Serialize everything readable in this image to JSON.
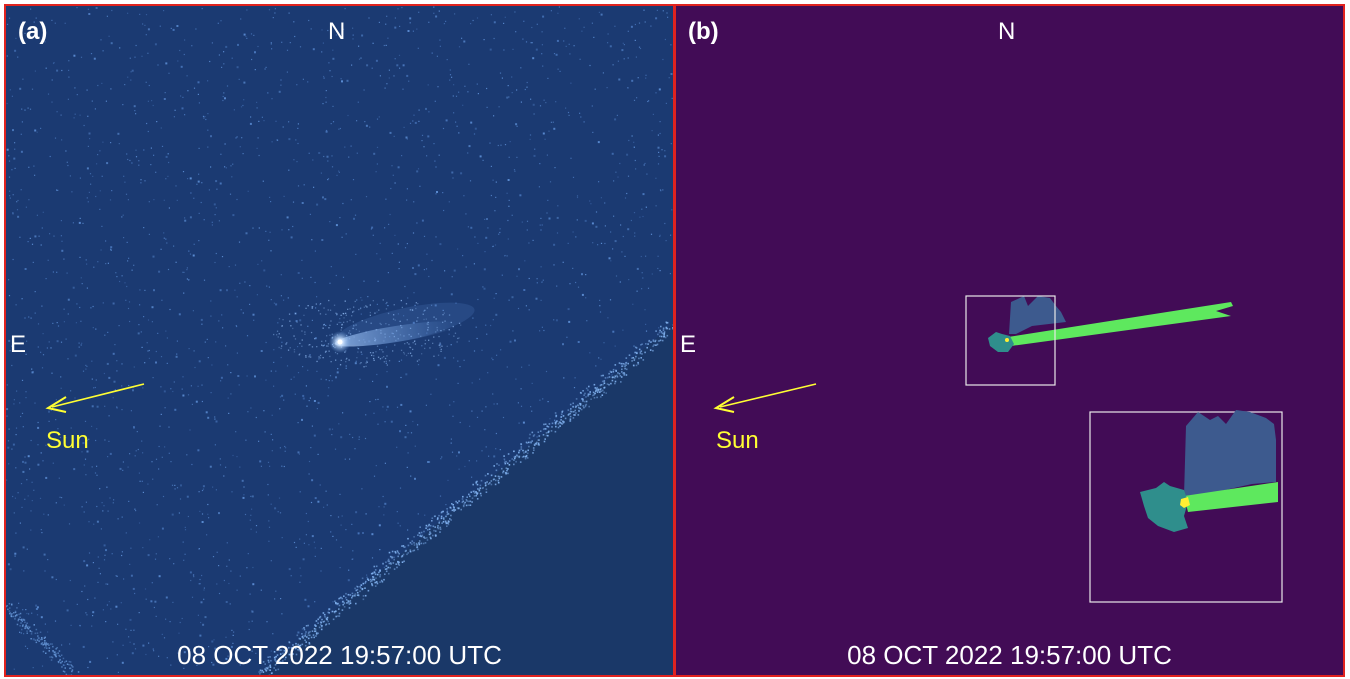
{
  "panels": [
    {
      "label": "(a)",
      "north": "N",
      "east": "E",
      "sun_label": "Sun",
      "timestamp": "08 OCT 2022 19:57:00 UTC",
      "background": "#1b3a72"
    },
    {
      "label": "(b)",
      "north": "N",
      "east": "E",
      "sun_label": "Sun",
      "timestamp": "08 OCT 2022 19:57:00 UTC",
      "background": "#420c56"
    }
  ],
  "colors": {
    "border": "#e0231f",
    "text": "#ffffff",
    "sun_arrow": "#ffff33",
    "tail_green": "#5ee85e",
    "coma_teal": "#2f8e8c",
    "dust_blue": "#3d5a8e",
    "nucleus_yellow": "#ffee33"
  }
}
